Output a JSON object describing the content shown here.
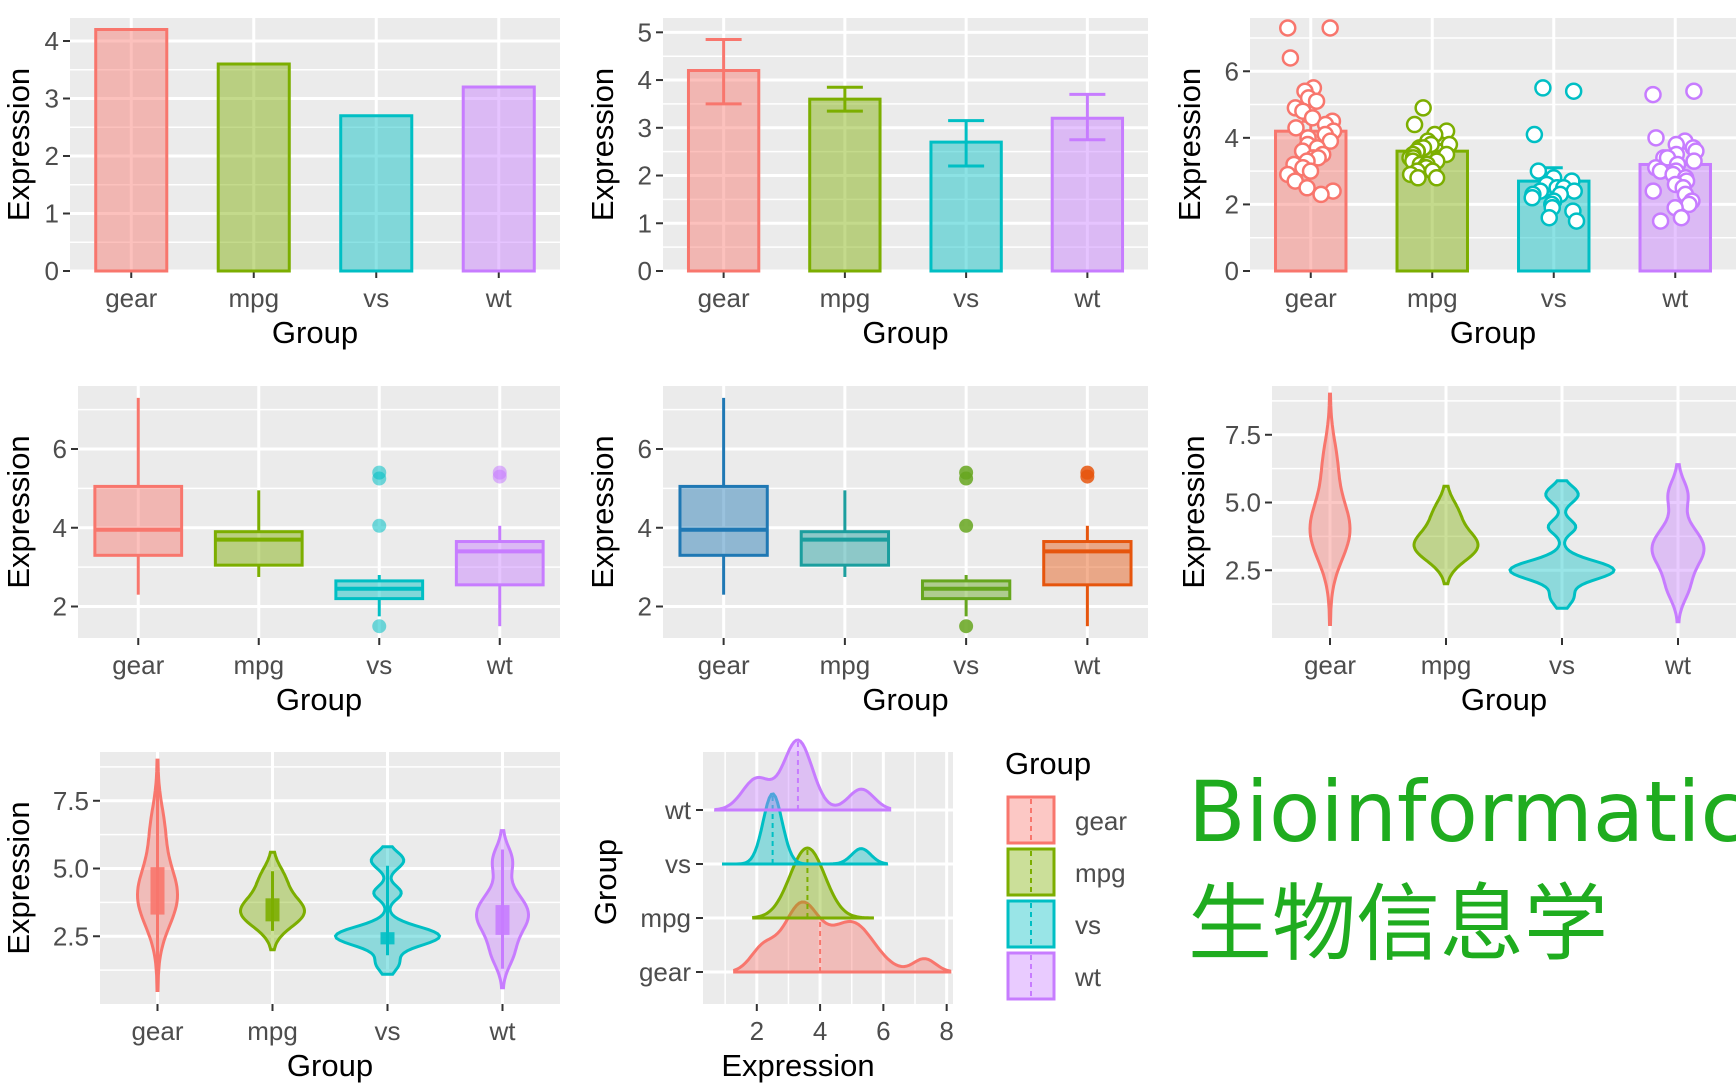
{
  "colors": {
    "gear": "#F8766D",
    "mpg": "#7CAE00",
    "vs": "#00BFC4",
    "wt": "#C77CFF",
    "panel_bg": "#EBEBEB",
    "grid": "#FFFFFF",
    "alt_palette": [
      "#1F78B4",
      "#1B9E9E",
      "#66A61E",
      "#E6550D"
    ],
    "watermark": "#1FAC1F"
  },
  "watermark": {
    "line1": "Bioinformatic",
    "line2": "生物信息学"
  },
  "chart_data": [
    {
      "type": "bar",
      "variant": "mean-bar",
      "categories": [
        "gear",
        "mpg",
        "vs",
        "wt"
      ],
      "values": [
        4.2,
        3.6,
        2.7,
        3.2
      ],
      "xlabel": "Group",
      "ylabel": "Expression",
      "ylim": [
        0,
        4.4
      ],
      "yticks": [
        "0",
        "1",
        "2",
        "3",
        "4"
      ]
    },
    {
      "type": "bar",
      "variant": "mean-bar-errorbar",
      "categories": [
        "gear",
        "mpg",
        "vs",
        "wt"
      ],
      "values": [
        4.2,
        3.6,
        2.7,
        3.2
      ],
      "error_low": [
        3.5,
        3.35,
        2.2,
        2.75
      ],
      "error_high": [
        4.85,
        3.85,
        3.15,
        3.7
      ],
      "xlabel": "Group",
      "ylabel": "Expression",
      "ylim": [
        0,
        5.3
      ],
      "yticks": [
        "0",
        "1",
        "2",
        "3",
        "4",
        "5"
      ]
    },
    {
      "type": "bar",
      "variant": "mean-bar-jitter",
      "categories": [
        "gear",
        "mpg",
        "vs",
        "wt"
      ],
      "values": [
        4.2,
        3.6,
        2.7,
        3.2
      ],
      "error_low": [
        3.9,
        3.45,
        2.35,
        2.9
      ],
      "error_high": [
        4.5,
        3.8,
        3.1,
        3.5
      ],
      "points": [
        [
          7.3,
          7.3,
          6.4,
          5.5,
          5.4,
          5.2,
          5.1,
          4.9,
          4.8,
          4.6,
          4.5,
          4.4,
          4.3,
          4.2,
          4.1,
          4.0,
          3.9,
          3.8,
          3.7,
          3.6,
          3.5,
          3.4,
          3.4,
          3.3,
          3.2,
          3.1,
          3.0,
          2.9,
          2.7,
          2.5,
          2.4,
          2.3
        ],
        [
          4.9,
          4.4,
          4.2,
          4.1,
          3.9,
          3.8,
          3.8,
          3.7,
          3.7,
          3.6,
          3.6,
          3.5,
          3.5,
          3.4,
          3.4,
          3.3,
          3.3,
          3.2,
          3.2,
          3.1,
          3.1,
          3.0,
          3.0,
          2.9,
          2.8,
          2.8
        ],
        [
          5.5,
          5.4,
          4.1,
          3.0,
          2.8,
          2.7,
          2.6,
          2.5,
          2.5,
          2.4,
          2.4,
          2.3,
          2.3,
          2.2,
          2.1,
          2.0,
          1.9,
          1.8,
          1.6,
          1.5
        ],
        [
          5.4,
          5.3,
          4.0,
          3.9,
          3.8,
          3.7,
          3.6,
          3.5,
          3.4,
          3.4,
          3.3,
          3.2,
          3.1,
          3.0,
          3.0,
          2.9,
          2.8,
          2.7,
          2.6,
          2.5,
          2.4,
          2.3,
          2.1,
          2.0,
          1.9,
          1.6,
          1.5
        ]
      ],
      "xlabel": "Group",
      "ylabel": "Expression",
      "ylim": [
        0,
        7.6
      ],
      "yticks": [
        "0",
        "2",
        "4",
        "6"
      ]
    },
    {
      "type": "box",
      "variant": "boxplot",
      "categories": [
        "gear",
        "mpg",
        "vs",
        "wt"
      ],
      "q1": [
        3.3,
        3.05,
        2.2,
        2.55
      ],
      "median": [
        3.95,
        3.7,
        2.45,
        3.4
      ],
      "q3": [
        5.05,
        3.9,
        2.65,
        3.65
      ],
      "whisker_low": [
        2.3,
        2.75,
        1.75,
        1.5
      ],
      "whisker_high": [
        7.3,
        4.95,
        2.8,
        4.05
      ],
      "outliers": [
        [],
        [],
        [
          5.4,
          5.25,
          4.05,
          1.5
        ],
        [
          5.4,
          5.3
        ]
      ],
      "xlabel": "Group",
      "ylabel": "Expression",
      "ylim": [
        1.2,
        7.6
      ],
      "yticks": [
        "2",
        "4",
        "6"
      ]
    },
    {
      "type": "box",
      "variant": "boxplot-alt-palette",
      "categories": [
        "gear",
        "mpg",
        "vs",
        "wt"
      ],
      "q1": [
        3.3,
        3.05,
        2.2,
        2.55
      ],
      "median": [
        3.95,
        3.7,
        2.45,
        3.4
      ],
      "q3": [
        5.05,
        3.9,
        2.65,
        3.65
      ],
      "whisker_low": [
        2.3,
        2.75,
        1.75,
        1.5
      ],
      "whisker_high": [
        7.3,
        4.95,
        2.8,
        4.05
      ],
      "outliers": [
        [],
        [],
        [
          5.4,
          5.25,
          4.05,
          1.5
        ],
        [
          5.4,
          5.3
        ]
      ],
      "xlabel": "Group",
      "ylabel": "Expression",
      "ylim": [
        1.2,
        7.6
      ],
      "yticks": [
        "2",
        "4",
        "6"
      ]
    },
    {
      "type": "violin",
      "variant": "violin",
      "categories": [
        "gear",
        "mpg",
        "vs",
        "wt"
      ],
      "ymin": [
        0.5,
        2.0,
        1.1,
        0.6
      ],
      "ymax": [
        9.0,
        5.6,
        5.8,
        6.4
      ],
      "density_mode": [
        4.0,
        3.5,
        2.6,
        3.4
      ],
      "xlabel": "Group",
      "ylabel": "Expression",
      "ylim": [
        0.0,
        9.3
      ],
      "yticks": [
        "2.5",
        "5.0",
        "7.5"
      ]
    },
    {
      "type": "violin",
      "variant": "violin-with-box",
      "categories": [
        "gear",
        "mpg",
        "vs",
        "wt"
      ],
      "ymin": [
        0.5,
        2.0,
        1.1,
        0.6
      ],
      "ymax": [
        9.0,
        5.6,
        5.8,
        6.4
      ],
      "q1": [
        3.3,
        3.05,
        2.2,
        2.55
      ],
      "median": [
        3.95,
        3.7,
        2.45,
        3.4
      ],
      "q3": [
        5.05,
        3.9,
        2.65,
        3.65
      ],
      "xlabel": "Group",
      "ylabel": "Expression",
      "ylim": [
        0.0,
        9.3
      ],
      "yticks": [
        "2.5",
        "5.0",
        "7.5"
      ]
    },
    {
      "type": "area",
      "variant": "ridgeline",
      "categories": [
        "gear",
        "mpg",
        "vs",
        "wt"
      ],
      "means": [
        4.0,
        3.6,
        2.5,
        3.3
      ],
      "xlabel": "Expression",
      "ylabel": "Group",
      "xlim": [
        0.3,
        8.2
      ],
      "xticks": [
        "2",
        "4",
        "6",
        "8"
      ],
      "legend": {
        "title": "Group",
        "entries": [
          "gear",
          "mpg",
          "vs",
          "wt"
        ],
        "position": "right"
      }
    }
  ]
}
